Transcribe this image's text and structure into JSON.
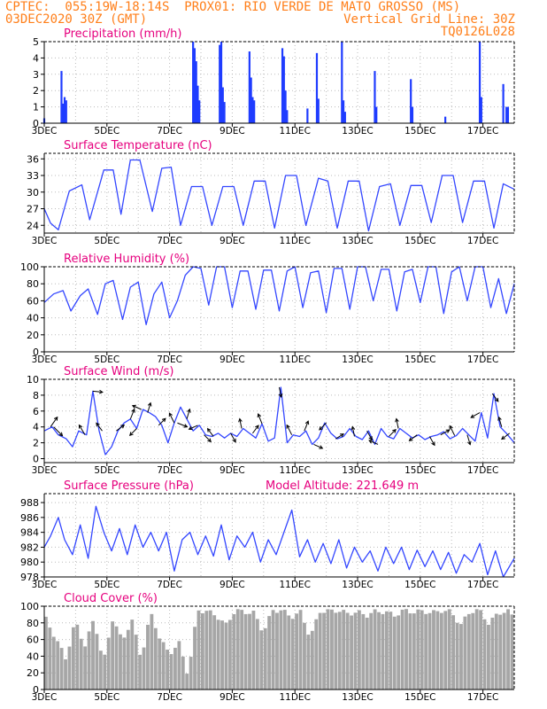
{
  "header": {
    "line1_left": "CPTEC:  055:19W-18:14S  PROX01: RIO VERDE DE MATO GROSSO (MS)",
    "line2_left": "03DEC2020 30Z (GMT)",
    "line2_right": "Vertical Grid Line: 30Z",
    "line3_right": "TQ0126L028"
  },
  "colors": {
    "header": "#ff7f1a",
    "title": "#e6007e",
    "line": "#3346ff",
    "bar": "#1f3cff",
    "cloud": "#a6a6a6",
    "grid": "#bbbbbb"
  },
  "chart_data": [
    {
      "type": "bar",
      "title": "Precipitation (mm/h)",
      "ylim": [
        0,
        5
      ],
      "yticks": [
        "0",
        "1",
        "2",
        "3",
        "4",
        "5"
      ],
      "xticks": [
        "3DEC",
        "5DEC",
        "7DEC",
        "9DEC",
        "11DEC",
        "13DEC",
        "15DEC",
        "17DEC"
      ],
      "x_days": [
        3,
        18
      ],
      "bars": [
        [
          3.0,
          0.3
        ],
        [
          3.55,
          3.2
        ],
        [
          3.6,
          1.2
        ],
        [
          3.65,
          1.6
        ],
        [
          3.7,
          1.4
        ],
        [
          7.75,
          5.0
        ],
        [
          7.8,
          4.6
        ],
        [
          7.85,
          3.8
        ],
        [
          7.9,
          2.3
        ],
        [
          7.95,
          1.4
        ],
        [
          8.6,
          4.8
        ],
        [
          8.65,
          5.0
        ],
        [
          8.7,
          2.2
        ],
        [
          8.75,
          1.3
        ],
        [
          9.55,
          4.4
        ],
        [
          9.6,
          2.8
        ],
        [
          9.65,
          1.6
        ],
        [
          9.7,
          1.4
        ],
        [
          10.6,
          4.6
        ],
        [
          10.65,
          4.1
        ],
        [
          10.7,
          2.0
        ],
        [
          10.75,
          0.8
        ],
        [
          11.4,
          0.9
        ],
        [
          11.7,
          4.3
        ],
        [
          11.75,
          1.5
        ],
        [
          12.5,
          5.0
        ],
        [
          12.55,
          1.4
        ],
        [
          12.6,
          0.7
        ],
        [
          13.55,
          3.2
        ],
        [
          13.6,
          1.0
        ],
        [
          14.7,
          2.7
        ],
        [
          14.75,
          1.0
        ],
        [
          15.8,
          0.4
        ],
        [
          16.9,
          5.0
        ],
        [
          16.95,
          1.6
        ],
        [
          17.65,
          2.4
        ],
        [
          17.75,
          1.0
        ],
        [
          17.8,
          1.0
        ]
      ]
    },
    {
      "type": "line",
      "title": "Surface Temperature (nC)",
      "ylim": [
        22.6,
        37
      ],
      "yticks": [
        "24",
        "27",
        "30",
        "33",
        "36"
      ],
      "xticks": [
        "3DEC",
        "5DEC",
        "7DEC",
        "9DEC",
        "11DEC",
        "13DEC",
        "15DEC",
        "17DEC"
      ],
      "x_days": [
        3,
        18
      ],
      "x": [
        3.0,
        3.2,
        3.45,
        3.8,
        4.2,
        4.45,
        4.9,
        5.2,
        5.45,
        5.75,
        6.05,
        6.45,
        6.75,
        7.05,
        7.35,
        7.7,
        8.05,
        8.35,
        8.7,
        9.05,
        9.35,
        9.7,
        10.05,
        10.35,
        10.7,
        11.05,
        11.35,
        11.75,
        12.05,
        12.35,
        12.7,
        13.05,
        13.35,
        13.7,
        14.05,
        14.35,
        14.7,
        15.05,
        15.35,
        15.7,
        16.05,
        16.35,
        16.7,
        17.05,
        17.35,
        17.65,
        18.0
      ],
      "y": [
        27,
        24.4,
        23.2,
        30.2,
        31.3,
        25,
        34,
        34,
        26,
        35.8,
        35.8,
        26.5,
        34.3,
        34.5,
        24,
        31,
        31,
        24,
        31,
        31,
        24,
        32,
        32,
        23.5,
        33,
        33,
        24,
        32.5,
        32,
        23.5,
        32,
        32,
        23,
        31,
        31.5,
        24,
        31.2,
        31.2,
        24.5,
        33,
        33,
        24.5,
        32,
        32,
        23.5,
        31.5,
        30.5
      ]
    },
    {
      "type": "line",
      "title": "Relative Humidity (%)",
      "ylim": [
        0,
        100
      ],
      "yticks": [
        "0",
        "20",
        "40",
        "60",
        "80",
        "100"
      ],
      "xticks": [
        "3DEC",
        "5DEC",
        "7DEC",
        "9DEC",
        "11DEC",
        "13DEC",
        "15DEC",
        "17DEC"
      ],
      "x_days": [
        3,
        18
      ],
      "x": [
        3.0,
        3.3,
        3.6,
        3.85,
        4.15,
        4.4,
        4.7,
        4.95,
        5.2,
        5.5,
        5.75,
        6.0,
        6.25,
        6.5,
        6.75,
        7.0,
        7.25,
        7.5,
        7.75,
        8.0,
        8.25,
        8.5,
        8.75,
        9.0,
        9.25,
        9.5,
        9.75,
        10.0,
        10.25,
        10.5,
        10.75,
        11.0,
        11.25,
        11.5,
        11.75,
        12.0,
        12.25,
        12.5,
        12.75,
        13.0,
        13.25,
        13.5,
        13.75,
        14.0,
        14.25,
        14.5,
        14.75,
        15.0,
        15.25,
        15.5,
        15.75,
        16.0,
        16.25,
        16.5,
        16.75,
        17.0,
        17.25,
        17.5,
        17.75,
        18.0
      ],
      "y": [
        58,
        68,
        72,
        48,
        66,
        74,
        44,
        80,
        84,
        38,
        76,
        82,
        32,
        68,
        82,
        40,
        60,
        90,
        100,
        98,
        55,
        100,
        100,
        52,
        95,
        95,
        50,
        96,
        96,
        48,
        95,
        100,
        52,
        93,
        95,
        46,
        98,
        98,
        50,
        100,
        100,
        60,
        97,
        97,
        48,
        94,
        97,
        58,
        100,
        100,
        45,
        94,
        100,
        60,
        100,
        100,
        52,
        86,
        45,
        80
      ]
    },
    {
      "type": "line",
      "title": "Surface Wind (m/s)",
      "ylim": [
        -0.5,
        10
      ],
      "yticks": [
        "0",
        "2",
        "4",
        "6",
        "8",
        "10"
      ],
      "xticks": [
        "3DEC",
        "5DEC",
        "7DEC",
        "9DEC",
        "11DEC",
        "13DEC",
        "15DEC",
        "17DEC"
      ],
      "x_days": [
        3,
        18
      ],
      "x": [
        3.0,
        3.25,
        3.45,
        3.7,
        3.9,
        4.1,
        4.35,
        4.55,
        4.75,
        4.95,
        5.15,
        5.35,
        5.55,
        5.75,
        5.95,
        6.15,
        6.35,
        6.55,
        6.75,
        6.95,
        7.15,
        7.35,
        7.55,
        7.75,
        7.95,
        8.15,
        8.35,
        8.55,
        8.75,
        8.95,
        9.15,
        9.35,
        9.55,
        9.75,
        9.95,
        10.15,
        10.35,
        10.55,
        10.75,
        10.95,
        11.15,
        11.35,
        11.55,
        11.75,
        11.95,
        12.15,
        12.35,
        12.55,
        12.75,
        12.95,
        13.15,
        13.35,
        13.55,
        13.75,
        13.95,
        14.15,
        14.35,
        14.55,
        14.75,
        14.95,
        15.15,
        15.35,
        15.55,
        15.75,
        15.95,
        16.15,
        16.35,
        16.55,
        16.75,
        16.95,
        17.15,
        17.35,
        17.55,
        17.75,
        18.0
      ],
      "y": [
        3.5,
        4.0,
        3.0,
        2.5,
        1.5,
        3.5,
        3.0,
        8.5,
        3.5,
        0.5,
        1.5,
        3.5,
        4.5,
        5.0,
        3.8,
        6.2,
        5.8,
        5.3,
        4.2,
        2.0,
        4.5,
        6.5,
        5.0,
        3.5,
        4.2,
        3.0,
        2.8,
        3.2,
        2.6,
        3.2,
        2.8,
        3.8,
        3.2,
        2.6,
        4.4,
        2.2,
        2.6,
        9.0,
        2.0,
        3.0,
        2.8,
        3.5,
        1.8,
        2.6,
        4.5,
        3.2,
        2.5,
        2.8,
        3.8,
        2.8,
        2.4,
        3.5,
        1.8,
        3.8,
        2.8,
        2.5,
        3.8,
        3.2,
        2.6,
        3.0,
        2.4,
        2.8,
        3.0,
        3.4,
        2.5,
        2.9,
        3.8,
        3.0,
        2.2,
        5.8,
        2.6,
        8.2,
        4.0,
        3.2,
        2.0
      ],
      "arrows": [
        [
          3.2,
          0.7,
          1.0
        ],
        [
          3.3,
          0.9,
          -0.9
        ],
        [
          4.3,
          -0.6,
          1.0
        ],
        [
          4.55,
          1.0,
          -0.1
        ],
        [
          4.85,
          -0.6,
          0.8
        ],
        [
          5.3,
          0.8,
          0.6
        ],
        [
          5.75,
          0.4,
          1.0
        ],
        [
          5.95,
          -0.7,
          -0.7
        ],
        [
          6.1,
          -0.9,
          0.4
        ],
        [
          6.3,
          0.3,
          1.0
        ],
        [
          6.65,
          0.7,
          0.7
        ],
        [
          7.15,
          -0.5,
          1.0
        ],
        [
          7.25,
          1.0,
          -0.4
        ],
        [
          7.55,
          0.3,
          1.0
        ],
        [
          7.9,
          -0.9,
          -0.4
        ],
        [
          8.1,
          0.7,
          -0.7
        ],
        [
          8.4,
          -0.6,
          0.8
        ],
        [
          8.95,
          0.5,
          -0.9
        ],
        [
          9.3,
          -0.2,
          1.0
        ],
        [
          9.65,
          0.6,
          0.8
        ],
        [
          9.95,
          -0.4,
          1.0
        ],
        [
          10.5,
          0.2,
          -1.0
        ],
        [
          10.9,
          -0.5,
          1.0
        ],
        [
          11.3,
          0.4,
          1.0
        ],
        [
          11.6,
          0.9,
          -0.4
        ],
        [
          12.0,
          -0.7,
          -0.7
        ],
        [
          12.3,
          0.8,
          0.5
        ],
        [
          12.9,
          -0.2,
          1.0
        ],
        [
          13.3,
          0.5,
          -0.9
        ],
        [
          13.65,
          -0.9,
          0.4
        ],
        [
          14.0,
          0.7,
          0.7
        ],
        [
          14.3,
          -0.2,
          1.0
        ],
        [
          14.9,
          -0.8,
          -0.6
        ],
        [
          15.3,
          0.5,
          -0.9
        ],
        [
          15.65,
          0.9,
          0.5
        ],
        [
          16.1,
          -0.5,
          1.0
        ],
        [
          16.5,
          0.3,
          -1.0
        ],
        [
          16.9,
          -0.9,
          -0.5
        ],
        [
          17.3,
          0.6,
          -0.8
        ],
        [
          17.6,
          -0.3,
          1.0
        ],
        [
          17.85,
          -0.8,
          -0.6
        ]
      ]
    },
    {
      "type": "line",
      "title": "Surface Pressure (hPa)",
      "subtitle": "Model Altitude: 221.649  m",
      "ylim": [
        978,
        989.2
      ],
      "yticks": [
        "978",
        "980",
        "982",
        "984",
        "986",
        "988"
      ],
      "xticks": [
        "3DEC",
        "5DEC",
        "7DEC",
        "9DEC",
        "11DEC",
        "13DEC",
        "15DEC",
        "17DEC"
      ],
      "x_days": [
        3,
        18
      ],
      "x": [
        3.0,
        3.2,
        3.45,
        3.65,
        3.9,
        4.15,
        4.4,
        4.65,
        4.9,
        5.15,
        5.4,
        5.65,
        5.9,
        6.15,
        6.4,
        6.65,
        6.9,
        7.15,
        7.4,
        7.65,
        7.9,
        8.15,
        8.4,
        8.65,
        8.9,
        9.15,
        9.4,
        9.65,
        9.9,
        10.15,
        10.4,
        10.65,
        10.9,
        11.15,
        11.4,
        11.65,
        11.9,
        12.15,
        12.4,
        12.65,
        12.9,
        13.15,
        13.4,
        13.65,
        13.9,
        14.15,
        14.4,
        14.65,
        14.9,
        15.15,
        15.4,
        15.65,
        15.9,
        16.15,
        16.4,
        16.65,
        16.9,
        17.15,
        17.4,
        17.65,
        18.0
      ],
      "y": [
        982,
        983.5,
        986,
        983,
        981,
        985,
        980.5,
        987.5,
        984,
        981.5,
        984.5,
        981,
        985,
        982,
        984,
        981.5,
        984,
        978.8,
        983,
        984,
        981,
        983.5,
        980.8,
        985,
        980.3,
        983.5,
        982,
        984,
        980,
        983,
        981,
        984,
        987,
        980.7,
        983,
        980,
        982.5,
        979.8,
        983,
        979.2,
        982,
        980,
        981.5,
        978.8,
        982,
        979.8,
        982,
        979,
        981.6,
        979.4,
        981.5,
        979,
        981.3,
        978.5,
        981,
        980,
        982.5,
        978.3,
        981.5,
        978,
        980.5
      ]
    },
    {
      "type": "bar",
      "title": "Cloud Cover (%)",
      "ylim": [
        0,
        100
      ],
      "yticks": [
        "0",
        "20",
        "40",
        "60",
        "80",
        "100"
      ],
      "xticks": [
        "3DEC",
        "5DEC",
        "7DEC",
        "9DEC",
        "11DEC",
        "13DEC",
        "15DEC",
        "17DEC"
      ],
      "x_days": [
        3,
        18
      ],
      "profile_x": [
        3.0,
        3.3,
        3.7,
        4.0,
        4.3,
        4.6,
        4.9,
        5.2,
        5.5,
        5.8,
        6.1,
        6.4,
        6.7,
        7.0,
        7.3,
        7.6,
        7.9,
        8.2,
        8.5,
        8.8,
        9.1,
        9.4,
        9.7,
        10.0,
        10.3,
        10.6,
        10.9,
        11.2,
        11.5,
        11.8,
        12.1,
        12.4,
        12.7,
        13.0,
        13.3,
        13.6,
        13.9,
        14.2,
        14.5,
        14.8,
        15.1,
        15.4,
        15.7,
        16.0,
        16.3,
        16.6,
        16.9,
        17.2,
        17.5,
        17.8,
        18.0
      ],
      "profile_y": [
        92,
        70,
        40,
        85,
        55,
        88,
        35,
        90,
        60,
        88,
        40,
        95,
        65,
        45,
        60,
        20,
        98,
        97,
        92,
        80,
        98,
        96,
        95,
        72,
        98,
        98,
        90,
        96,
        65,
        97,
        97,
        98,
        94,
        96,
        92,
        97,
        96,
        92,
        98,
        96,
        97,
        95,
        98,
        96,
        80,
        97,
        98,
        82,
        95,
        97,
        90
      ]
    }
  ]
}
